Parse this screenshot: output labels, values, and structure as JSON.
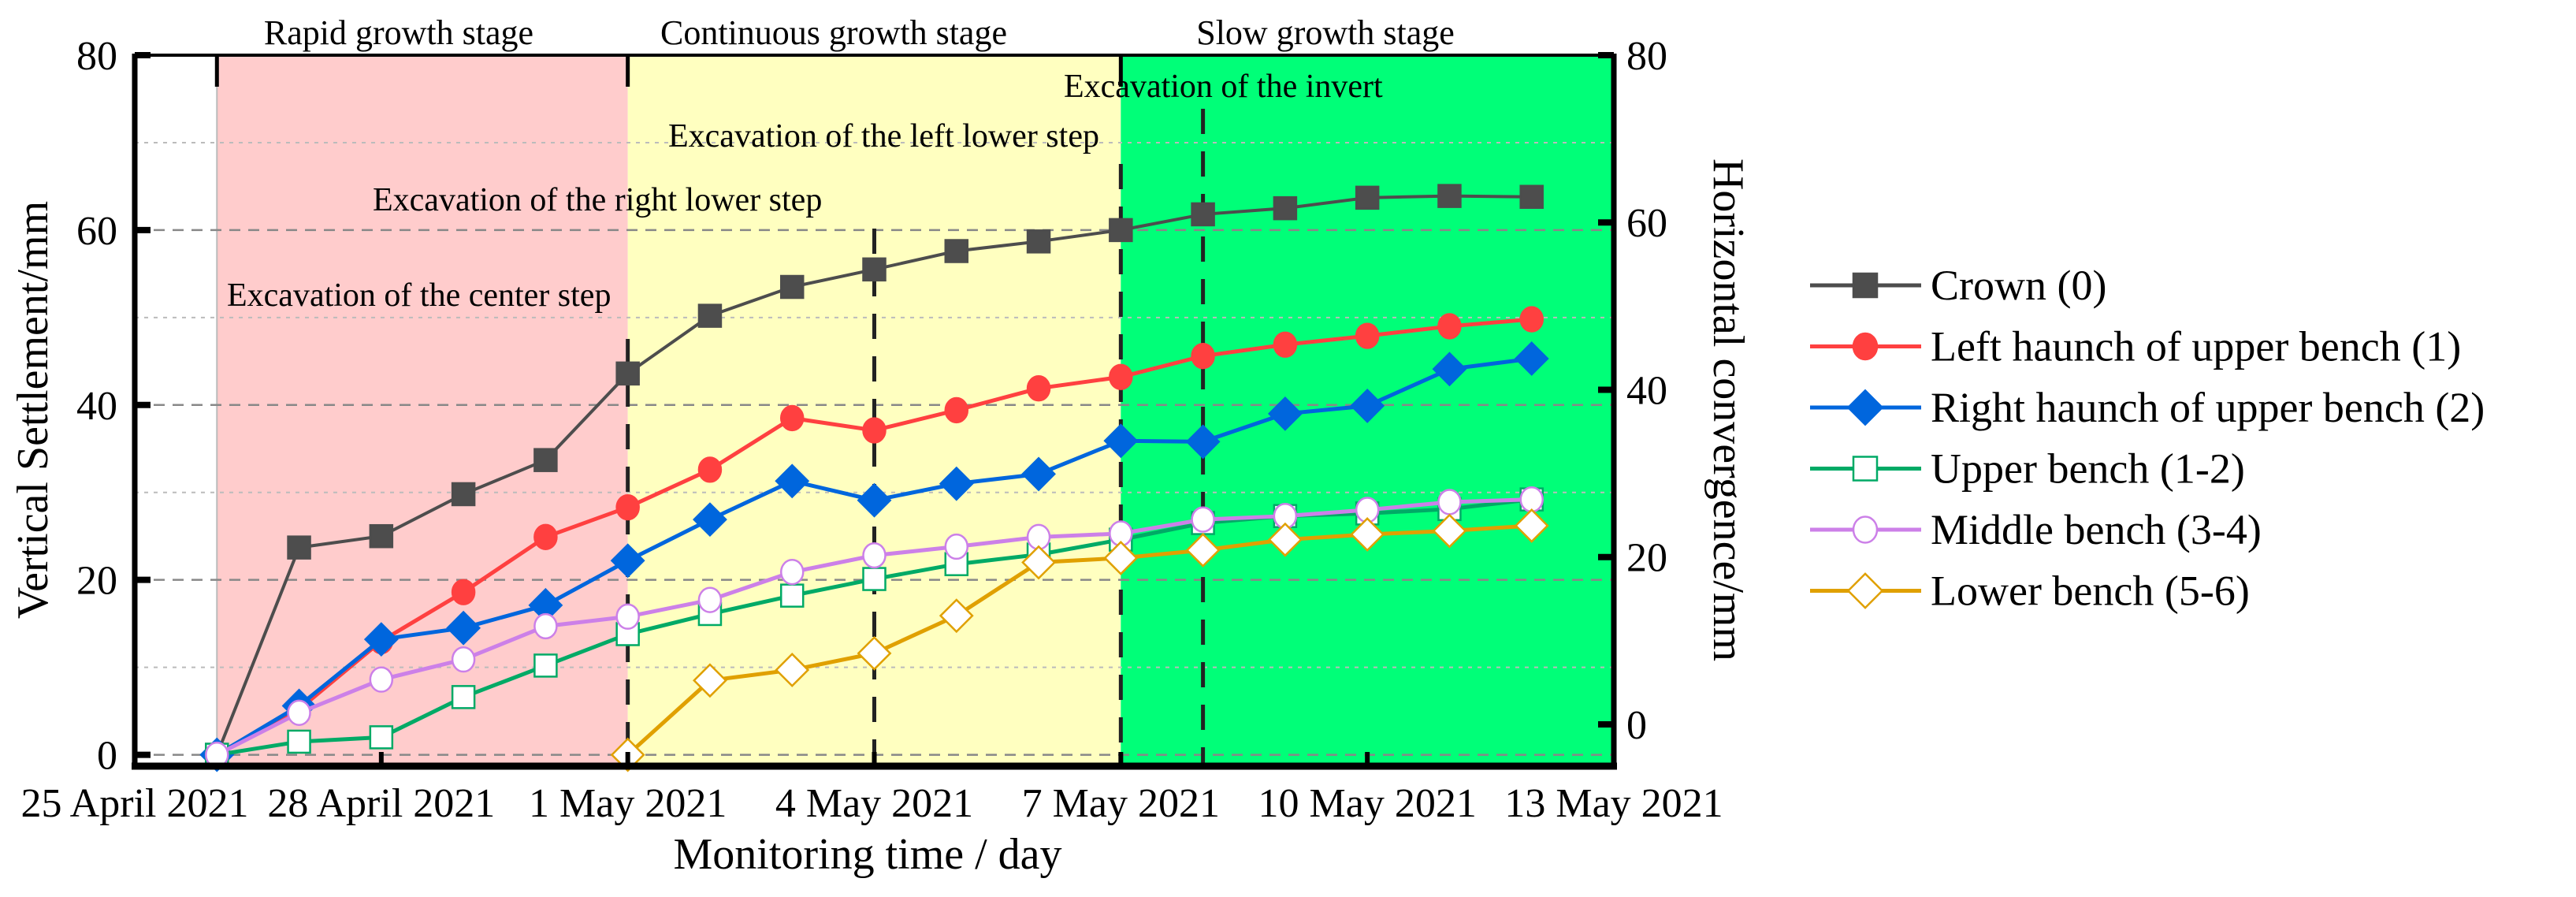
{
  "chart_data": {
    "type": "line",
    "xlabel": "Monitoring time / day",
    "ylabel": "Vertical Settlement/mm",
    "y2label": "Horizontal convergence/mm",
    "x_ticks": [
      "25 April 2021",
      "28 April 2021",
      "1 May 2021",
      "4 May 2021",
      "7 May 2021",
      "10 May 2021",
      "13 May 2021"
    ],
    "x_tick_days": [
      0,
      3,
      6,
      9,
      12,
      15,
      18
    ],
    "x_unit": "days since 25 April 2021",
    "x": [
      1,
      2,
      3,
      4,
      5,
      6,
      7,
      8,
      9,
      10,
      11,
      12,
      13,
      14,
      15,
      16,
      17
    ],
    "xlim": [
      0,
      18
    ],
    "ylim": [
      -1.3,
      80
    ],
    "y_ticks": [
      "0",
      "20",
      "40",
      "60",
      "80"
    ],
    "y2lim": [
      -5,
      80
    ],
    "y2_ticks": [
      "0",
      "20",
      "40",
      "60",
      "80"
    ],
    "grid": true,
    "legend_position": "right",
    "stages": [
      {
        "label": "Rapid growth stage",
        "from": 1,
        "to": 6,
        "color": "#FFCCCC"
      },
      {
        "label": "Continuous growth stage",
        "from": 6,
        "to": 12,
        "color": "#FFFFC0"
      },
      {
        "label": "Slow growth stage",
        "from": 12,
        "to": 18,
        "color": "#00FF78"
      }
    ],
    "annotations": [
      {
        "label": "Excavation of  the center step",
        "day": 6
      },
      {
        "label": "Excavation of  the right lower step",
        "day": 9
      },
      {
        "label": "Excavation of  the left lower step",
        "day": 12
      },
      {
        "label": "Excavation of  the invert",
        "day": 13
      }
    ],
    "series": [
      {
        "name": "Crown  (0)",
        "color": "#4D4D4D",
        "marker": "square-filled",
        "values": [
          0,
          23.7,
          25.0,
          29.8,
          33.7,
          43.6,
          50.2,
          53.5,
          55.5,
          57.6,
          58.7,
          60.0,
          61.8,
          62.5,
          63.7,
          63.9,
          63.8
        ]
      },
      {
        "name": "Left haunch of upper bench (1)",
        "color": "#FF4040",
        "marker": "circle-filled",
        "values": [
          0,
          5.2,
          13.0,
          18.6,
          24.9,
          28.3,
          32.6,
          38.5,
          37.1,
          39.4,
          41.9,
          43.2,
          45.6,
          46.9,
          47.9,
          49.0,
          49.8
        ]
      },
      {
        "name": "Right haunch of upper bench  (2)",
        "color": "#0066DD",
        "marker": "diamond-filled",
        "values": [
          0,
          5.6,
          13.2,
          14.5,
          17.1,
          22.2,
          26.9,
          31.3,
          29.1,
          31.0,
          32.1,
          35.9,
          35.8,
          39.0,
          39.9,
          44.1,
          45.3
        ]
      },
      {
        "name": "Upper bench (1-2)",
        "color": "#00AA66",
        "marker": "square-open",
        "values": [
          0,
          1.5,
          2.0,
          6.6,
          10.2,
          13.8,
          16.1,
          18.2,
          20.1,
          21.8,
          22.9,
          24.6,
          26.5,
          27.3,
          27.6,
          28.1,
          29.2
        ]
      },
      {
        "name": "Middle bench  (3-4)",
        "color": "#CC80E8",
        "marker": "circle-open",
        "values": [
          0,
          4.8,
          8.6,
          10.9,
          14.7,
          15.8,
          17.7,
          20.9,
          22.8,
          23.8,
          24.9,
          25.3,
          26.9,
          27.3,
          28.0,
          28.9,
          29.2
        ]
      },
      {
        "name": "Lower bench  (5-6)",
        "color": "#E0A000",
        "marker": "diamond-open",
        "values": [
          null,
          null,
          null,
          null,
          null,
          0,
          8.5,
          9.7,
          11.6,
          15.9,
          22.0,
          22.5,
          23.4,
          24.6,
          25.2,
          25.6,
          26.2
        ]
      }
    ]
  }
}
